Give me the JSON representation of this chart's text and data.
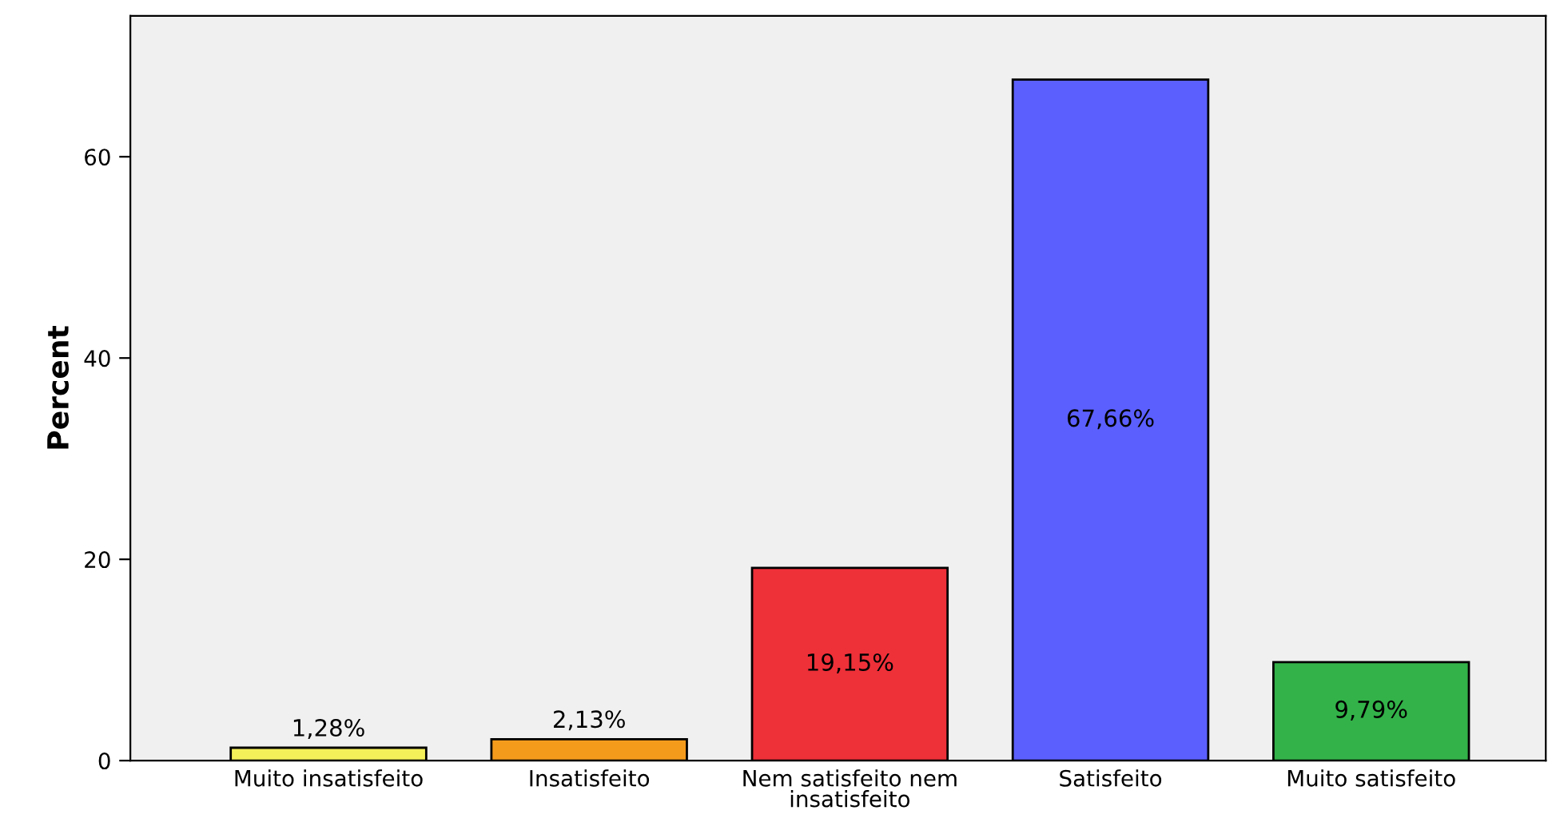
{
  "chart_data": {
    "type": "bar",
    "ylabel": "Percent",
    "categories": [
      "Muito insatisfeito",
      "Insatisfeito",
      "Nem satisfeito nem\ninsatisfeito",
      "Satisfeito",
      "Muito satisfeito"
    ],
    "values": [
      1.28,
      2.13,
      19.15,
      67.66,
      9.79
    ],
    "colors": [
      "#f4f05a",
      "#f59b1c",
      "#ee3039",
      "#5b5ffe",
      "#33b249"
    ],
    "value_labels": [
      "1,28%",
      "2,13%",
      "19,15%",
      "67,66%",
      "9,79%"
    ],
    "ylim": [
      0,
      74
    ],
    "yticks": [
      0,
      20,
      40,
      60
    ],
    "grid": false,
    "legend": false
  }
}
